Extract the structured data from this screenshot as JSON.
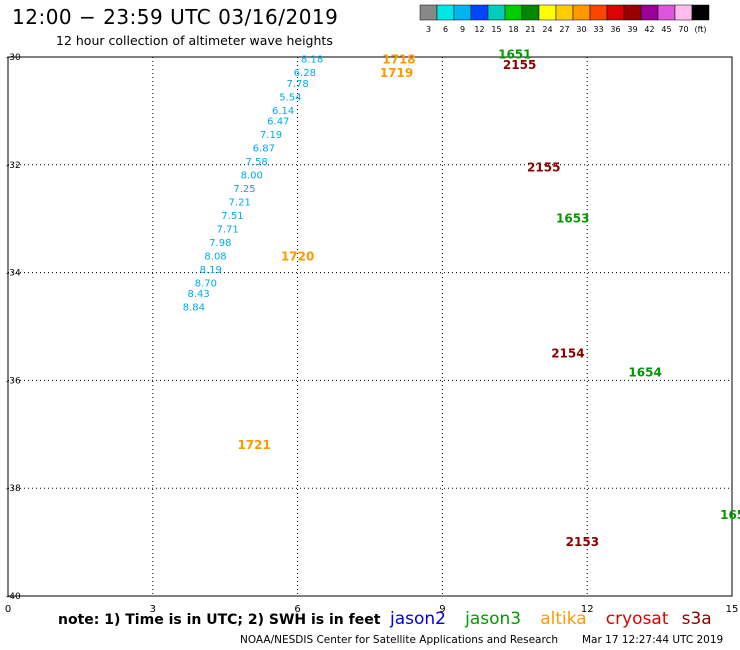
{
  "header": {
    "title": "12:00 − 23:59 UTC 03/16/2019",
    "subtitle": "12 hour collection of altimeter wave heights"
  },
  "colorbar": {
    "labels": [
      "3",
      "6",
      "9",
      "12",
      "15",
      "18",
      "21",
      "24",
      "27",
      "30",
      "33",
      "36",
      "39",
      "42",
      "45",
      "70",
      "(ft)"
    ],
    "colors": [
      "#888888",
      "#00e5e5",
      "#00b4f0",
      "#0044ff",
      "#00ccbb",
      "#00cc00",
      "#008800",
      "#ffff00",
      "#ffcc00",
      "#ff9900",
      "#ff4400",
      "#dd0000",
      "#990000",
      "#990099",
      "#dd55dd",
      "#ffbbee",
      "#000000"
    ]
  },
  "axes": {
    "x_ticks": [
      "0",
      "3",
      "6",
      "9",
      "12",
      "15"
    ],
    "y_ticks": [
      "-30",
      "-32",
      "-34",
      "-36",
      "-38",
      "-40"
    ]
  },
  "legend": {
    "note": "note:  1) Time is in UTC; 2) SWH is in feet",
    "sats": [
      {
        "name": "jason2",
        "color": "#0000dd"
      },
      {
        "name": "jason3",
        "color": "#009900"
      },
      {
        "name": "altika",
        "color": "#ff9900"
      },
      {
        "name": "cryosat",
        "color": "#dd0000"
      },
      {
        "name": "s3a",
        "color": "#8b0000"
      }
    ]
  },
  "footer": {
    "credit": "NOAA/NESDIS Center for Satellite Applications and Research",
    "timestamp": "Mar 17 12:27:44 UTC 2019"
  },
  "tracks": [
    {
      "sat": "altika",
      "time": "1718",
      "color": "#ff9900",
      "label_pos": [
        0.6,
        -30.05
      ],
      "points": [
        [
          "8.18",
          -1.2,
          -30.05
        ],
        [
          "6.28",
          -1.35,
          -30.3
        ],
        [
          "7.78",
          -1.5,
          -30.5
        ],
        [
          "5.54",
          -1.65,
          -30.75
        ],
        [
          "6.14",
          -1.8,
          -31.0
        ],
        [
          "6.47",
          -1.9,
          -31.2
        ],
        [
          "7.19",
          -2.05,
          -31.45
        ],
        [
          "6.87",
          -2.2,
          -31.7
        ],
        [
          "7.58",
          -2.35,
          -31.95
        ],
        [
          "8.00",
          -2.45,
          -32.2
        ],
        [
          "7.25",
          -2.6,
          -32.45
        ],
        [
          "7.21",
          -2.7,
          -32.7
        ],
        [
          "7.51",
          -2.85,
          -32.95
        ],
        [
          "7.71",
          -2.95,
          -33.2
        ],
        [
          "7.98",
          -3.1,
          -33.45
        ]
      ]
    },
    {
      "sat": "altika",
      "time": "1719",
      "color": "#ff9900",
      "label_pos": [
        0.55,
        -30.3
      ],
      "points": []
    },
    {
      "sat": "altika",
      "time": "1720",
      "color": "#ff9900",
      "label_pos": [
        -1.5,
        -33.7
      ],
      "points": [
        [
          "8.08",
          -3.2,
          -33.7
        ],
        [
          "8.19",
          -3.3,
          -33.95
        ],
        [
          "8.70",
          -3.4,
          -34.2
        ],
        [
          "8.43",
          -3.55,
          -34.4
        ],
        [
          "8.84",
          -3.65,
          -34.65
        ]
      ]
    },
    {
      "sat": "altika",
      "time": "1721",
      "color": "#ff9900",
      "label_pos": [
        -2.4,
        -37.2
      ],
      "points": []
    }
  ]
}
